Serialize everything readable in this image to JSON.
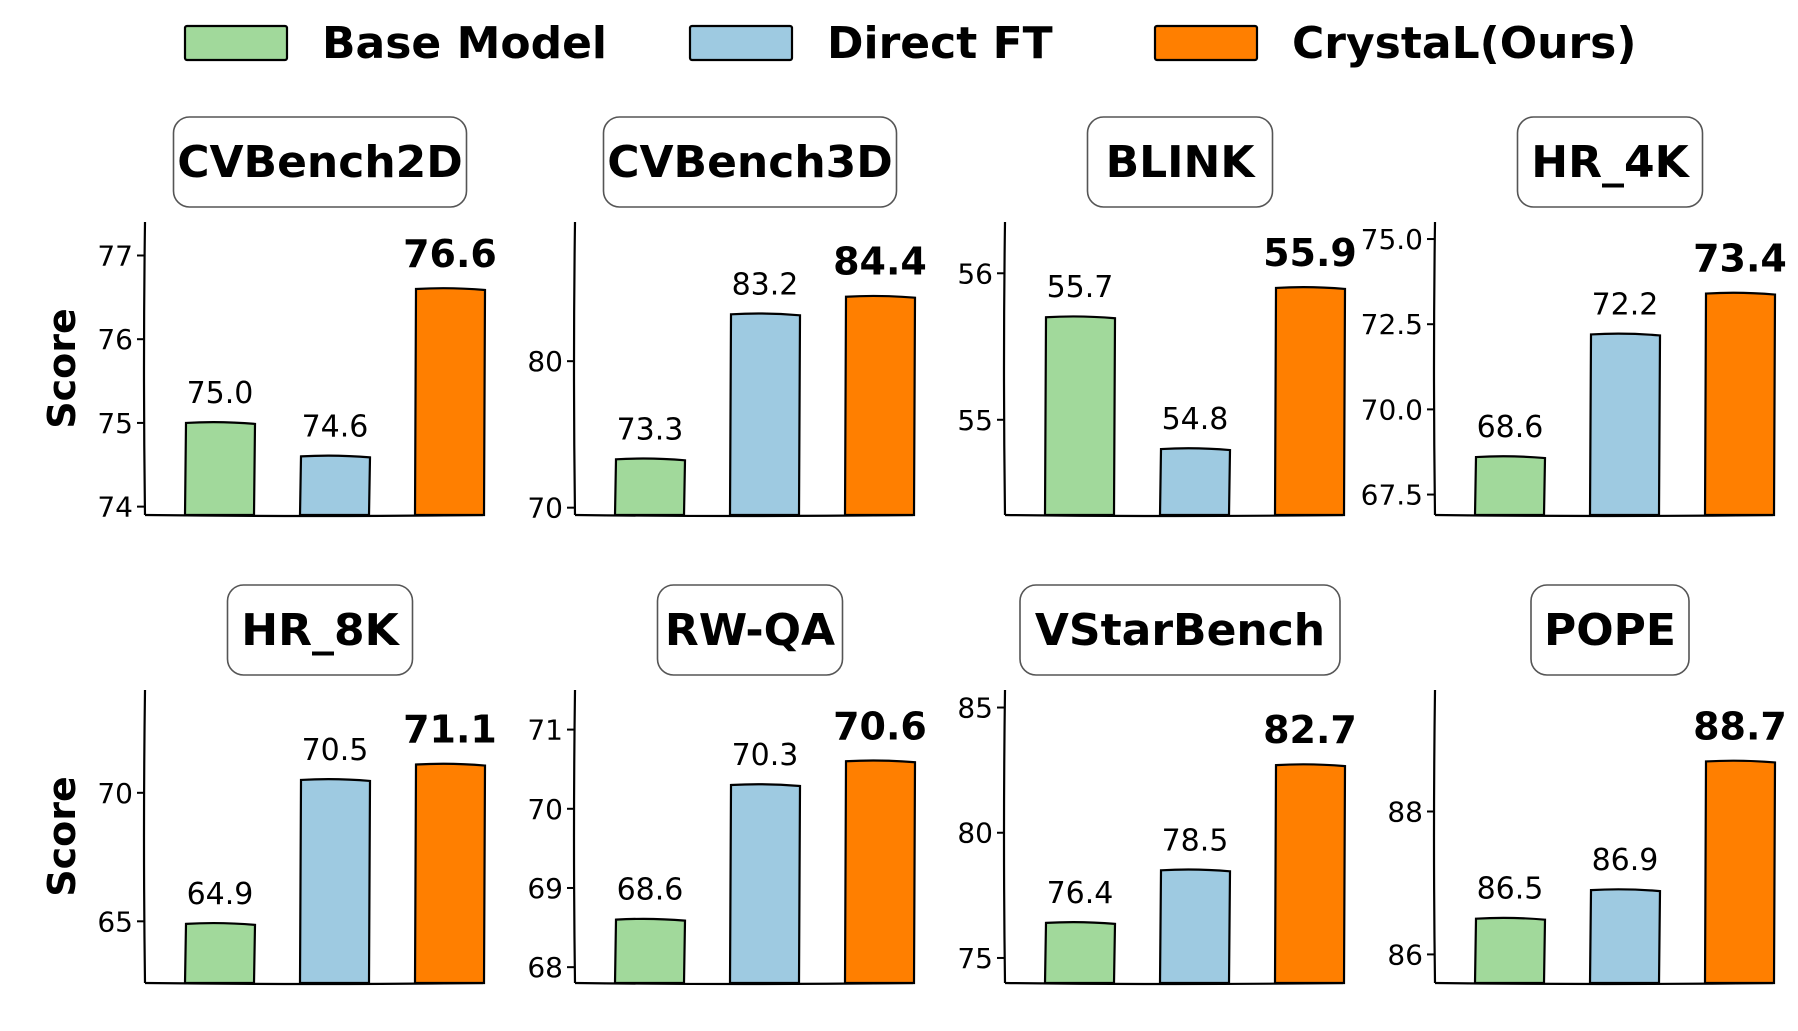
{
  "legend": [
    {
      "name": "Base Model",
      "color": "#a1d99b"
    },
    {
      "name": "Direct FT",
      "color": "#9ecae1"
    },
    {
      "name": "CrystaL(Ours)",
      "color": "#ff7f00"
    }
  ],
  "ylabel": "Score",
  "chart_data": [
    {
      "type": "bar",
      "title": "CVBench2D",
      "categories": [
        "Base Model",
        "Direct FT",
        "CrystaL(Ours)"
      ],
      "values": [
        75.0,
        74.6,
        76.6
      ],
      "labels": [
        "75.0",
        "74.6",
        "76.6"
      ],
      "ylim": [
        73.9,
        77.4
      ],
      "yticks": [
        74,
        75,
        76,
        77
      ],
      "ytick_labels": [
        "74",
        "75",
        "76",
        "77"
      ],
      "ylabel": "Score"
    },
    {
      "type": "bar",
      "title": "CVBench3D",
      "categories": [
        "Base Model",
        "Direct FT",
        "CrystaL(Ours)"
      ],
      "values": [
        73.3,
        83.2,
        84.4
      ],
      "labels": [
        "73.3",
        "83.2",
        "84.4"
      ],
      "ylim": [
        69.5,
        89.5
      ],
      "yticks": [
        70,
        80
      ],
      "ytick_labels": [
        "70",
        "80"
      ],
      "ylabel": ""
    },
    {
      "type": "bar",
      "title": "BLINK",
      "categories": [
        "Base Model",
        "Direct FT",
        "CrystaL(Ours)"
      ],
      "values": [
        55.7,
        54.8,
        55.9
      ],
      "labels": [
        "55.7",
        "54.8",
        "55.9"
      ],
      "ylim": [
        54.35,
        56.35
      ],
      "yticks": [
        55,
        56
      ],
      "ytick_labels": [
        "55",
        "56"
      ],
      "ylabel": ""
    },
    {
      "type": "bar",
      "title": "HR_4K",
      "categories": [
        "Base Model",
        "Direct FT",
        "CrystaL(Ours)"
      ],
      "values": [
        68.6,
        72.2,
        73.4
      ],
      "labels": [
        "68.6",
        "72.2",
        "73.4"
      ],
      "ylim": [
        66.9,
        75.5
      ],
      "yticks": [
        67.5,
        70.0,
        72.5,
        75.0
      ],
      "ytick_labels": [
        "67.5",
        "70.0",
        "72.5",
        "75.0"
      ],
      "ylabel": ""
    },
    {
      "type": "bar",
      "title": "HR_8K",
      "categories": [
        "Base Model",
        "Direct FT",
        "CrystaL(Ours)"
      ],
      "values": [
        64.9,
        70.5,
        71.1
      ],
      "labels": [
        "64.9",
        "70.5",
        "71.1"
      ],
      "ylim": [
        62.6,
        74.0
      ],
      "yticks": [
        65,
        70
      ],
      "ytick_labels": [
        "65",
        "70"
      ],
      "ylabel": "Score"
    },
    {
      "type": "bar",
      "title": "RW-QA",
      "categories": [
        "Base Model",
        "Direct FT",
        "CrystaL(Ours)"
      ],
      "values": [
        68.6,
        70.3,
        70.6
      ],
      "labels": [
        "68.6",
        "70.3",
        "70.6"
      ],
      "ylim": [
        67.8,
        71.5
      ],
      "yticks": [
        68,
        69,
        70,
        71
      ],
      "ytick_labels": [
        "68",
        "69",
        "70",
        "71"
      ],
      "ylabel": ""
    },
    {
      "type": "bar",
      "title": "VStarBench",
      "categories": [
        "Base Model",
        "Direct FT",
        "CrystaL(Ours)"
      ],
      "values": [
        76.4,
        78.5,
        82.7
      ],
      "labels": [
        "76.4",
        "78.5",
        "82.7"
      ],
      "ylim": [
        74.0,
        85.7
      ],
      "yticks": [
        75,
        80,
        85
      ],
      "ytick_labels": [
        "75",
        "80",
        "85"
      ],
      "ylabel": ""
    },
    {
      "type": "bar",
      "title": "POPE",
      "categories": [
        "Base Model",
        "Direct FT",
        "CrystaL(Ours)"
      ],
      "values": [
        86.5,
        86.9,
        88.7
      ],
      "labels": [
        "86.5",
        "86.9",
        "88.7"
      ],
      "ylim": [
        85.6,
        89.7
      ],
      "yticks": [
        86,
        88
      ],
      "ytick_labels": [
        "86",
        "88"
      ],
      "ylabel": ""
    }
  ]
}
